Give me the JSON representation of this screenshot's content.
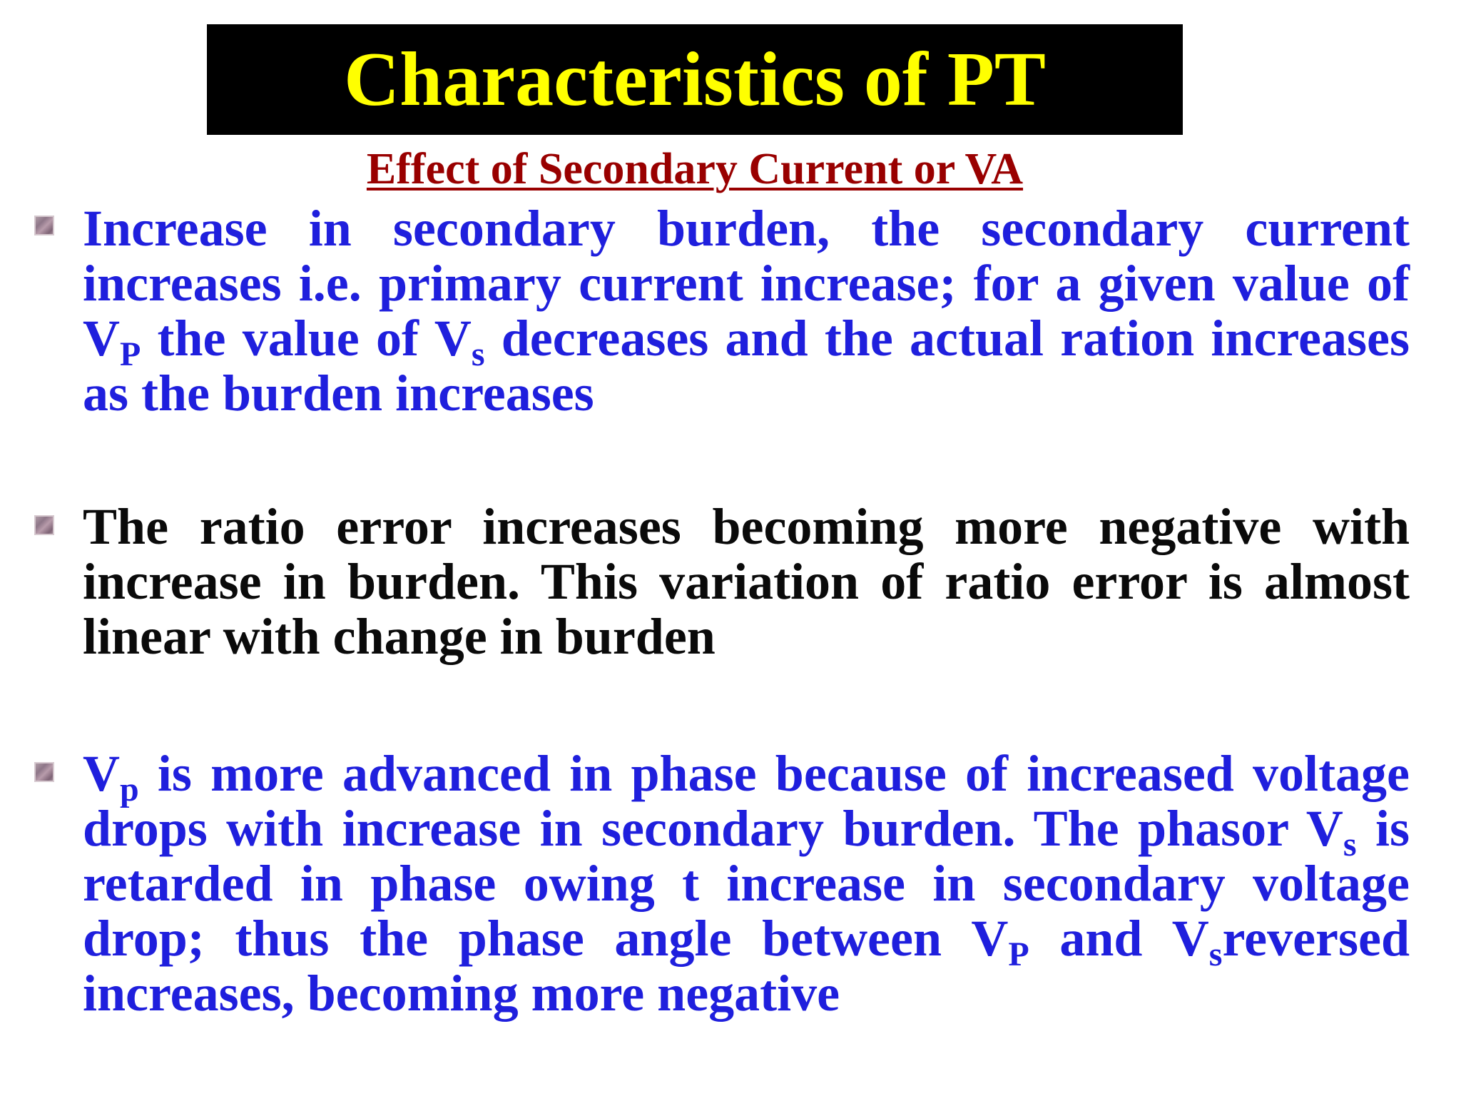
{
  "slide": {
    "title": "Characteristics of PT",
    "subtitle": "Effect of Secondary Current or VA",
    "colors": {
      "title_bar": "#000000",
      "title_text": "#ffff00",
      "subtitle": "#990000",
      "blue_text": "#1f1fdd",
      "black_text": "#0a0a0a"
    },
    "bullet1": {
      "part1": "Increase in secondary burden, the secondary current increases i.e. primary current increase; for a given value of V",
      "sub1": "P",
      "part2": " the value of V",
      "sub2": "s",
      "part3": " decreases and the actual ration increases as the burden increases"
    },
    "bullet2": {
      "text": "The ratio error increases becoming more negative with increase in burden. This variation of ratio error is almost linear with change in burden"
    },
    "bullet3": {
      "part1": "V",
      "sub1": "p",
      "part2": " is more advanced in phase because of  increased voltage drops with increase in secondary burden. The phasor V",
      "sub2": "s",
      "part3": " is retarded in phase owing t increase in secondary voltage drop; thus the phase angle between V",
      "sub3": "P",
      "part4": " and V",
      "sub4": "s",
      "part5": "reversed  increases, becoming more negative"
    },
    "bullet_icon": "square-bullet-icon"
  }
}
